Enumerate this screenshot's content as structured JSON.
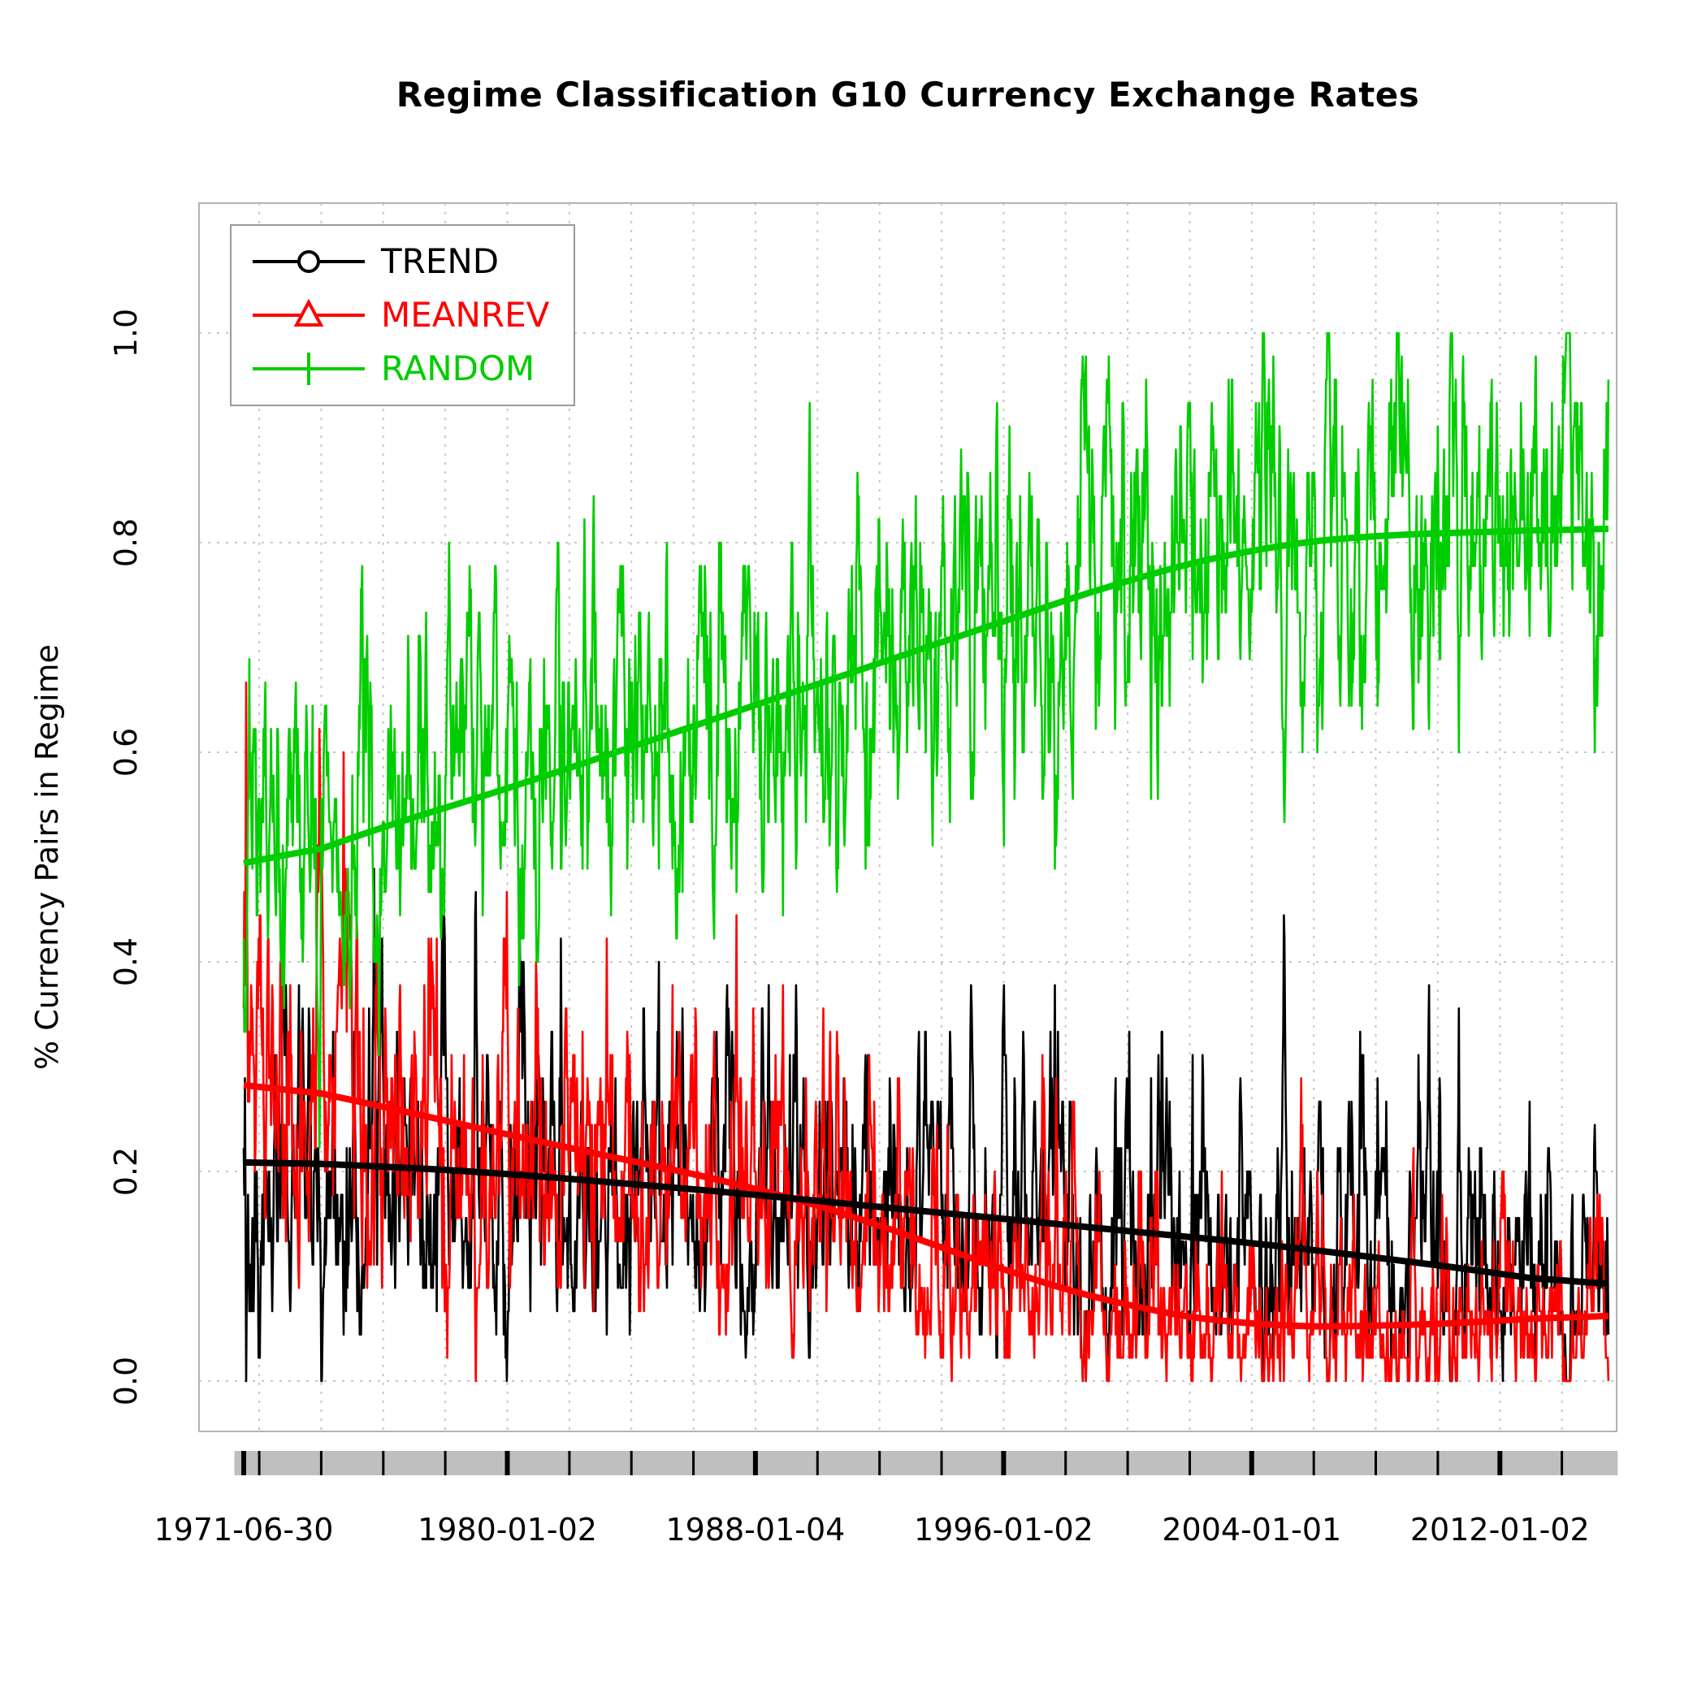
{
  "chart_data": {
    "type": "line",
    "title": "Regime Classification G10 Currency Exchange Rates",
    "ylabel": "% Currency Pairs in Regime",
    "xlabel": "",
    "x_tick_labels": [
      "1971-06-30",
      "1980-01-02",
      "1988-01-04",
      "1996-01-02",
      "2004-01-01",
      "2012-01-02"
    ],
    "x_tick_years": [
      1971.5,
      1980.0,
      1988.0,
      1996.0,
      2004.0,
      2012.0
    ],
    "x_range_years": [
      1971.5,
      2015.5
    ],
    "y_ticks": [
      0.0,
      0.2,
      0.4,
      0.6,
      0.8,
      1.0
    ],
    "y_tick_labels": [
      "0.0",
      "0.2",
      "0.4",
      "0.6",
      "0.8",
      "1.0"
    ],
    "ylim": [
      0,
      1
    ],
    "grid": {
      "style": "dotted",
      "vertical_interval_years": 2,
      "horizontal_interval": 0.2,
      "color": "#c6c6c6"
    },
    "axis_band_color": "#bfbfbf",
    "legend": {
      "position": "topleft",
      "entries": [
        {
          "label": "TREND",
          "color": "#000000",
          "marker": "circle"
        },
        {
          "label": "MEANREV",
          "color": "#ff0000",
          "marker": "triangle"
        },
        {
          "label": "RANDOM",
          "color": "#00cd00",
          "marker": "plus"
        }
      ]
    },
    "series": [
      {
        "name": "TREND",
        "color": "#000000",
        "description": "noisy % of pairs classified TREND, smooth loess overlay",
        "trend_anchors": [
          [
            1971.5,
            0.21
          ],
          [
            1976.0,
            0.205
          ],
          [
            1980.0,
            0.198
          ],
          [
            1984.0,
            0.188
          ],
          [
            1988.0,
            0.178
          ],
          [
            1992.0,
            0.166
          ],
          [
            1996.0,
            0.155
          ],
          [
            2000.0,
            0.143
          ],
          [
            2004.0,
            0.132
          ],
          [
            2008.0,
            0.118
          ],
          [
            2012.0,
            0.103
          ],
          [
            2015.5,
            0.087
          ]
        ]
      },
      {
        "name": "MEANREV",
        "color": "#ff0000",
        "description": "noisy % of pairs classified MEANREV, smooth loess overlay",
        "trend_anchors": [
          [
            1971.5,
            0.29
          ],
          [
            1976.0,
            0.262
          ],
          [
            1980.0,
            0.235
          ],
          [
            1984.0,
            0.21
          ],
          [
            1988.0,
            0.185
          ],
          [
            1992.0,
            0.15
          ],
          [
            1996.0,
            0.105
          ],
          [
            2000.0,
            0.07
          ],
          [
            2004.0,
            0.052
          ],
          [
            2008.0,
            0.052
          ],
          [
            2012.0,
            0.057
          ],
          [
            2015.5,
            0.065
          ]
        ]
      },
      {
        "name": "RANDOM",
        "color": "#00cd00",
        "description": "noisy % of pairs classified RANDOM, smooth loess overlay",
        "trend_anchors": [
          [
            1971.5,
            0.48
          ],
          [
            1975.0,
            0.52
          ],
          [
            1980.0,
            0.565
          ],
          [
            1985.0,
            0.615
          ],
          [
            1990.0,
            0.665
          ],
          [
            1995.0,
            0.715
          ],
          [
            2000.0,
            0.765
          ],
          [
            2004.0,
            0.795
          ],
          [
            2008.0,
            0.808
          ],
          [
            2012.0,
            0.81
          ],
          [
            2015.5,
            0.815
          ]
        ]
      }
    ],
    "noise_model": {
      "comment": "series sum to 1; estimated amplitudes from pixels",
      "points": 2200,
      "persistence": 0.8,
      "sigma_green": 0.055,
      "sigma_frac": 0.1,
      "quantize_step": 0.022222,
      "seed": 42
    }
  }
}
